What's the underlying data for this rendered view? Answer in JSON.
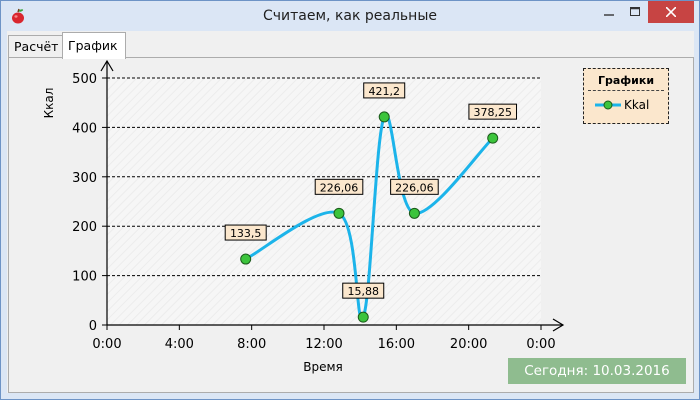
{
  "window": {
    "title": "Считаем, как реальные",
    "controls": {
      "minimize_icon": "minimize-icon",
      "maximize_icon": "maximize-icon",
      "close_icon": "close-icon"
    }
  },
  "tabs": [
    {
      "label": "Расчёт",
      "selected": false
    },
    {
      "label": "График",
      "selected": true
    }
  ],
  "chart_data": {
    "type": "line",
    "xlabel": "Время",
    "ylabel": "Ккал",
    "x_ticks": [
      "0:00",
      "4:00",
      "8:00",
      "12:00",
      "16:00",
      "20:00",
      "0:00"
    ],
    "xlim_hours": [
      0,
      24
    ],
    "y_ticks": [
      "0",
      "100",
      "200",
      "300",
      "400",
      "500"
    ],
    "ylim": [
      0,
      500
    ],
    "grid": {
      "horizontal": true,
      "vertical": false
    },
    "legend_position": "top-right",
    "legend_title": "Графики",
    "series": [
      {
        "name": "Kkal",
        "color": "#1cb4ea",
        "marker_color": "#3cc43c",
        "points": [
          {
            "x": "7:40",
            "hours": 7.67,
            "y": 133.5,
            "label": "133,5"
          },
          {
            "x": "12:50",
            "hours": 12.83,
            "y": 226.06,
            "label": "226,06"
          },
          {
            "x": "14:10",
            "hours": 14.17,
            "y": 15.88,
            "label": "15,88"
          },
          {
            "x": "15:20",
            "hours": 15.33,
            "y": 421.2,
            "label": "421,2"
          },
          {
            "x": "17:00",
            "hours": 17.0,
            "y": 226.06,
            "label": "226,06"
          },
          {
            "x": "21:20",
            "hours": 21.33,
            "y": 378.25,
            "label": "378,25"
          }
        ]
      }
    ]
  },
  "status": {
    "text": "Сегодня: 10.03.2016"
  }
}
